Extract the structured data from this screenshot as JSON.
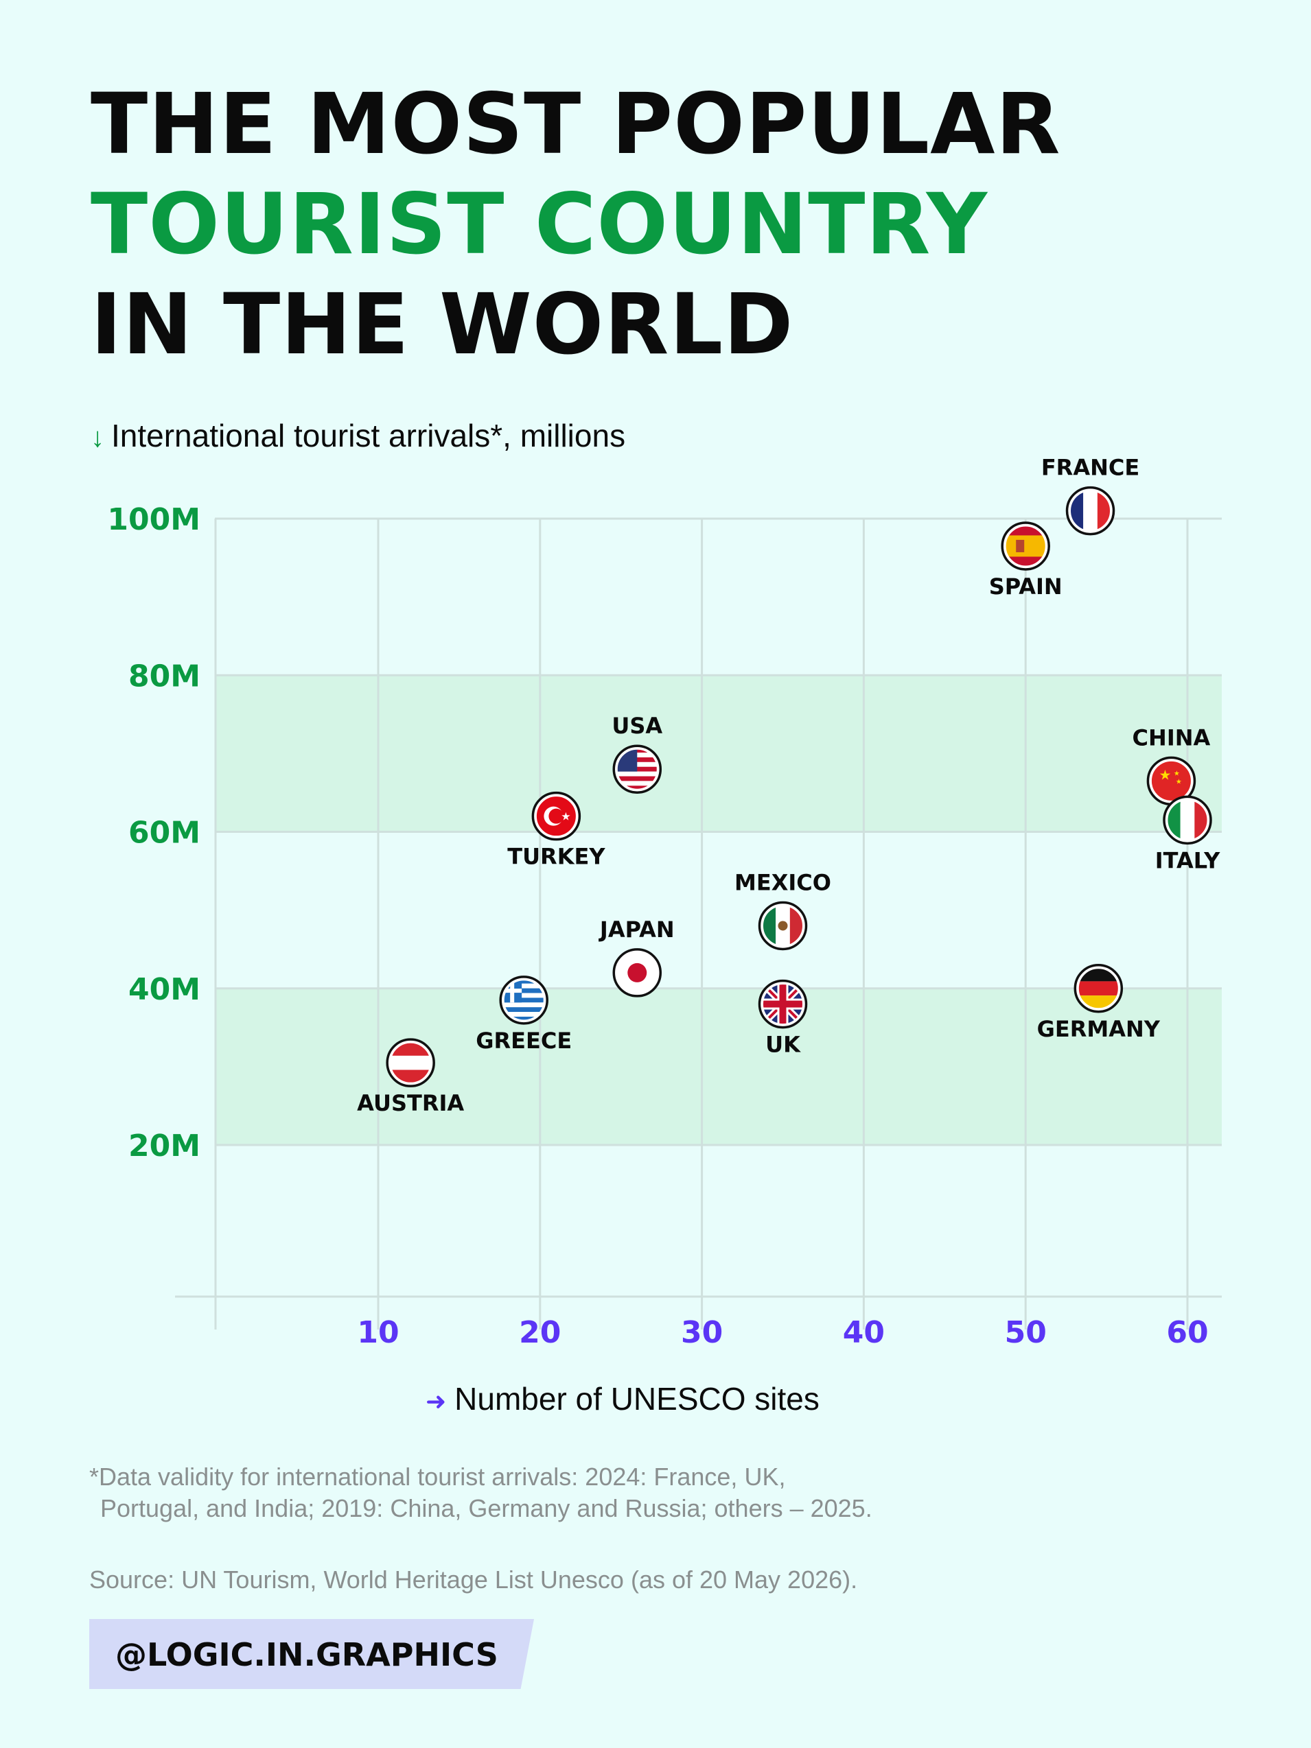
{
  "title": {
    "line1": "THE MOST POPULAR",
    "line2": "TOURIST COUNTRY",
    "line3": "IN THE WORLD"
  },
  "y_axis_label": "International tourist arrivals*, millions",
  "x_axis_label": "Number of UNESCO sites",
  "footnote": {
    "line1": "*Data validity for international tourist arrivals: 2024: France, UK,",
    "line2": "Portugal, and India; 2019: China, Germany and Russia; others – 2025."
  },
  "source": "Source: UN Tourism, World Heritage List Unesco (as of  20 May 2026).",
  "handle": "@LOGIC.IN.GRAPHICS",
  "colors": {
    "background": "#e8fdfb",
    "title_accent": "#0a9a42",
    "y_ticks": "#0a9a42",
    "x_ticks": "#5b35f5",
    "band": "#d5f5e6",
    "grid": "#cfe0dd"
  },
  "chart_data": {
    "type": "scatter",
    "xlabel": "Number of UNESCO sites",
    "ylabel": "International tourist arrivals*, millions",
    "xlim": [
      0,
      62
    ],
    "ylim": [
      0,
      100
    ],
    "xticks": [
      10,
      20,
      30,
      40,
      50,
      60
    ],
    "xtick_labels": [
      "10",
      "20",
      "30",
      "40",
      "50",
      "60"
    ],
    "yticks": [
      20,
      40,
      60,
      80,
      100
    ],
    "ytick_labels": [
      "20M",
      "40M",
      "60M",
      "80M",
      "100M"
    ],
    "bands": [
      [
        20,
        40
      ],
      [
        60,
        80
      ]
    ],
    "grid": true,
    "points": [
      {
        "label": "FRANCE",
        "x": 54,
        "y": 101,
        "flag": "france-flag",
        "label_pos": "above"
      },
      {
        "label": "SPAIN",
        "x": 50,
        "y": 96.5,
        "flag": "spain-flag",
        "label_pos": "below"
      },
      {
        "label": "USA",
        "x": 26,
        "y": 68,
        "flag": "usa-flag",
        "label_pos": "above"
      },
      {
        "label": "CHINA",
        "x": 59,
        "y": 66.5,
        "flag": "china-flag",
        "label_pos": "above"
      },
      {
        "label": "TURKEY",
        "x": 21,
        "y": 62,
        "flag": "turkey-flag",
        "label_pos": "below"
      },
      {
        "label": "ITALY",
        "x": 60,
        "y": 61.5,
        "flag": "italy-flag",
        "label_pos": "below"
      },
      {
        "label": "MEXICO",
        "x": 35,
        "y": 48,
        "flag": "mexico-flag",
        "label_pos": "above"
      },
      {
        "label": "JAPAN",
        "x": 26,
        "y": 42,
        "flag": "japan-flag",
        "label_pos": "above"
      },
      {
        "label": "GERMANY",
        "x": 54.5,
        "y": 40,
        "flag": "germany-flag",
        "label_pos": "below"
      },
      {
        "label": "GREECE",
        "x": 19,
        "y": 38.5,
        "flag": "greece-flag",
        "label_pos": "below"
      },
      {
        "label": "UK",
        "x": 35,
        "y": 38,
        "flag": "uk-flag",
        "label_pos": "below"
      },
      {
        "label": "AUSTRIA",
        "x": 12,
        "y": 30.5,
        "flag": "austria-flag",
        "label_pos": "below"
      }
    ]
  }
}
